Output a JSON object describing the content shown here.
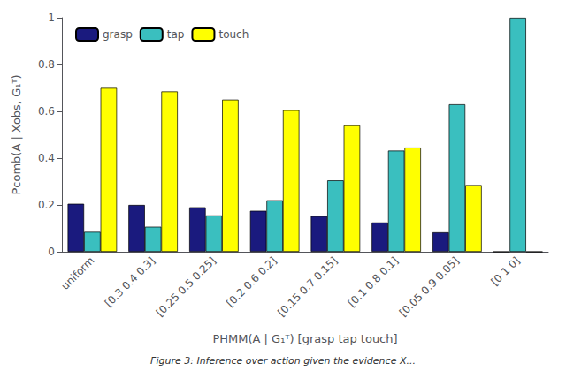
{
  "chart_data": {
    "type": "bar",
    "categories": [
      "uniform",
      "[0.3 0.4 0.3]",
      "[0.25 0.5 0.25]",
      "[0.2 0.6 0.2]",
      "[0.15 0.7 0.15]",
      "[0.1 0.8 0.1]",
      "[0.05 0.9 0.05]",
      "[0 1 0]"
    ],
    "series": [
      {
        "name": "grasp",
        "color": "#1a1a7e",
        "values": [
          0.205,
          0.2,
          0.19,
          0.175,
          0.152,
          0.125,
          0.083,
          0.0
        ]
      },
      {
        "name": "tap",
        "color": "#3abfbf",
        "values": [
          0.085,
          0.107,
          0.155,
          0.22,
          0.305,
          0.432,
          0.63,
          1.0
        ]
      },
      {
        "name": "touch",
        "color": "#ffff00",
        "values": [
          0.7,
          0.685,
          0.65,
          0.605,
          0.54,
          0.445,
          0.285,
          0.0
        ]
      }
    ],
    "xlabel": "PHMM(A | G₁ᵀ) [grasp tap touch]",
    "ylabel": "Pcomb(A | Xobs, G₁ᵀ)",
    "ylim": [
      0,
      1
    ],
    "yticks": [
      0,
      0.2,
      0.4,
      0.6,
      0.8,
      1
    ],
    "legend": "upper left",
    "grid": false,
    "annotations": [
      "Figure 3: Inference over action given the evidence X..."
    ]
  }
}
